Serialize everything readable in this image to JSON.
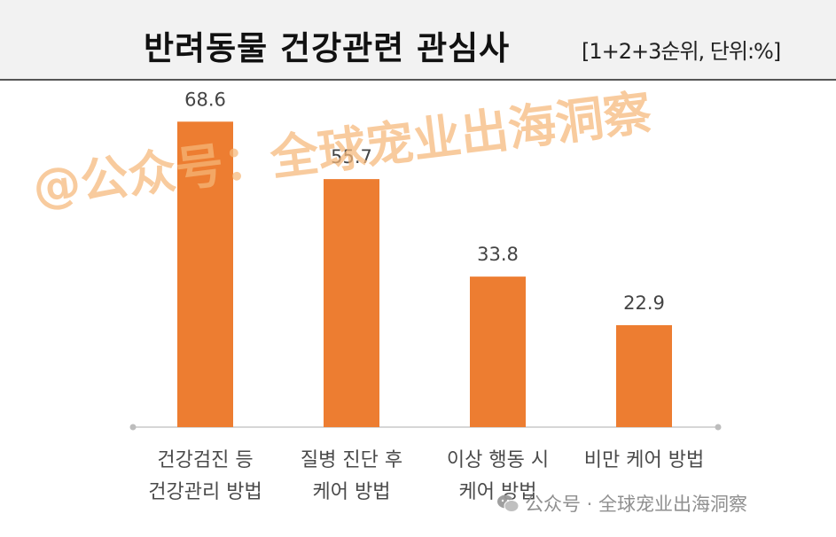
{
  "header": {
    "title": "반려동물 건강관련 관심사",
    "subtitle": "[1+2+3순위, 단위:%]"
  },
  "chart_data": {
    "type": "bar",
    "title": "반려동물 건강관련 관심사",
    "subtitle": "[1+2+3순위, 단위:%]",
    "categories": [
      [
        "건강검진 등",
        "건강관리 방법"
      ],
      [
        "질병 진단 후",
        "케어 방법"
      ],
      [
        "이상 행동 시",
        "케어 방법"
      ],
      [
        "비만 케어 방법"
      ]
    ],
    "values": [
      68.6,
      55.7,
      33.8,
      22.9
    ],
    "value_labels": [
      "68.6",
      "55.7",
      "33.8",
      "22.9"
    ],
    "ylim": [
      0,
      80
    ],
    "grid": false,
    "legend": "none",
    "bar_color": "#ed7d31"
  },
  "watermark": {
    "main": "@公众号：全球宠业出海洞察",
    "icon": "wechat-icon",
    "footer": "公众号 · 全球宠业出海洞察"
  }
}
